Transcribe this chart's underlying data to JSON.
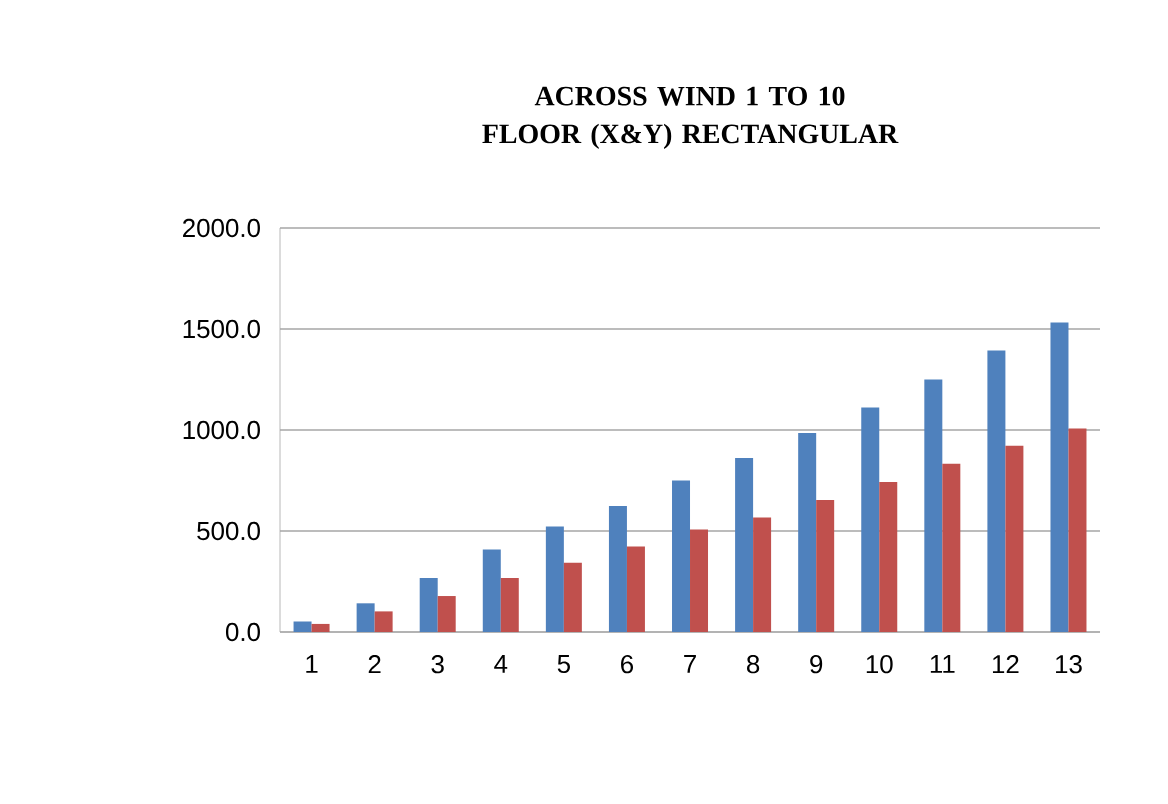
{
  "chart_data": {
    "type": "bar",
    "title": "ACROSS WIND 1 TO 10 FLOOR (X&Y) RECTANGULAR",
    "categories": [
      "1",
      "2",
      "3",
      "4",
      "5",
      "6",
      "7",
      "8",
      "9",
      "10",
      "11",
      "12",
      "13"
    ],
    "series": [
      {
        "color": "#4f81bd",
        "values": [
          52,
          142,
          267,
          409,
          522,
          624,
          750,
          862,
          985,
          1111,
          1250,
          1393,
          1532
        ]
      },
      {
        "color": "#c0504d",
        "values": [
          40,
          102,
          178,
          267,
          343,
          423,
          508,
          567,
          654,
          743,
          833,
          922,
          1008
        ]
      }
    ],
    "ylim": [
      0,
      2000
    ],
    "yticks": [
      {
        "value": 0,
        "label": "0.0"
      },
      {
        "value": 500,
        "label": "500.0"
      },
      {
        "value": 1000,
        "label": "1000.0"
      },
      {
        "value": 1500,
        "label": "1500.0"
      },
      {
        "value": 2000,
        "label": "2000.0"
      }
    ],
    "grid": "y"
  }
}
